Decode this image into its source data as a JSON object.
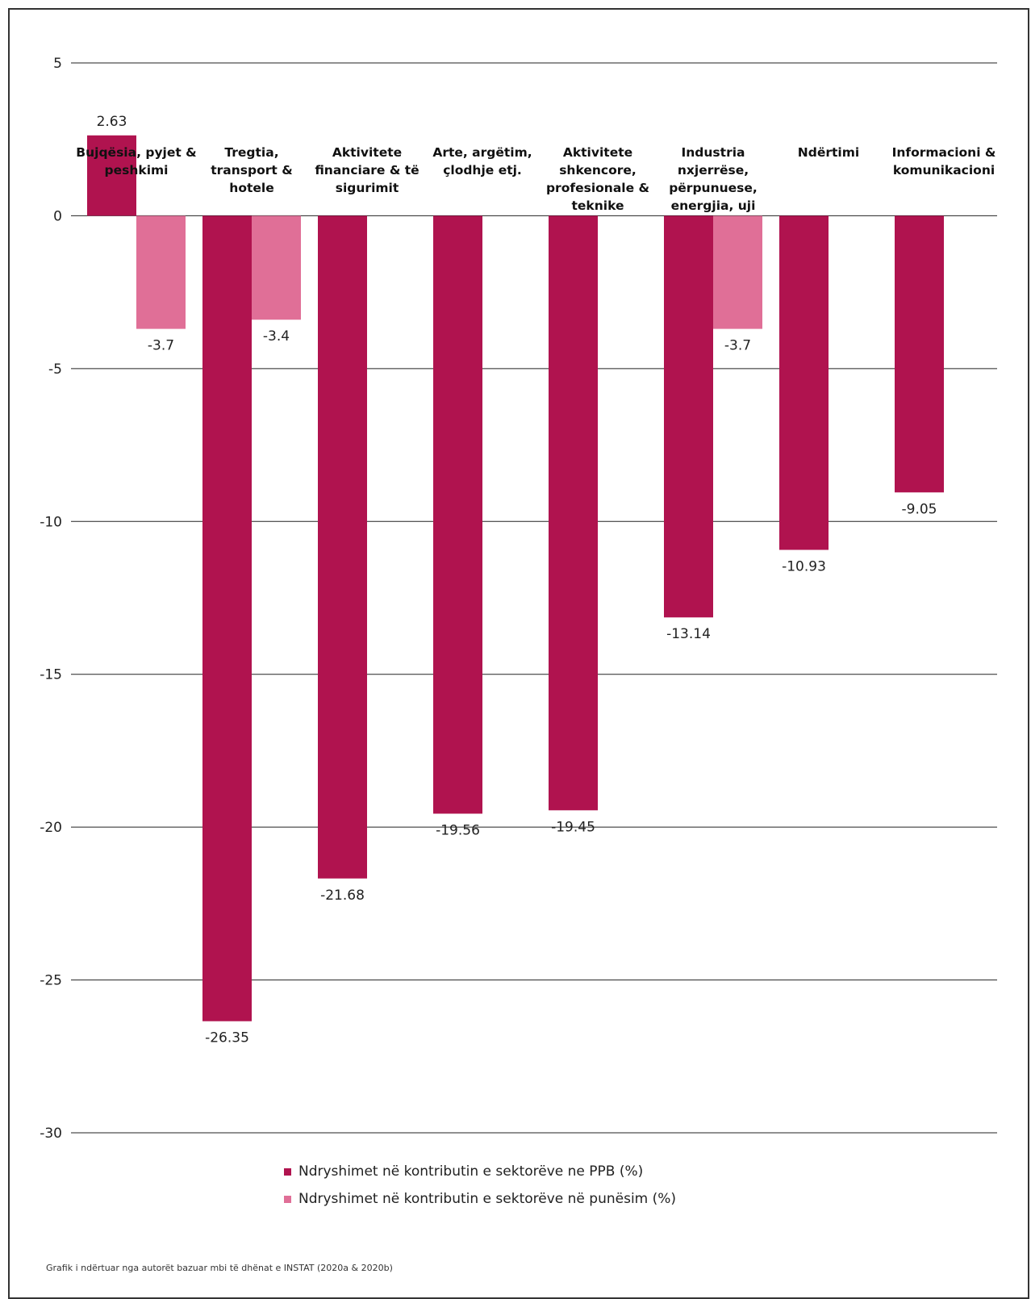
{
  "chart_data": {
    "type": "bar",
    "title": "",
    "xlabel": "",
    "ylabel": "",
    "ylim": [
      -30,
      5
    ],
    "yticks": [
      5,
      0,
      -5,
      -10,
      -15,
      -20,
      -25,
      -30
    ],
    "grid": true,
    "legend_position": "bottom",
    "categories": [
      [
        "Bujqësia, pyjet &",
        "peshkimi"
      ],
      [
        "Tregtia,",
        "transport &",
        "hotele"
      ],
      [
        "Aktivitete",
        "financiare & të",
        "sigurimit"
      ],
      [
        "Arte, argëtim,",
        "çlodhje etj."
      ],
      [
        "Aktivitete",
        "shkencore,",
        "profesionale &",
        "teknike"
      ],
      [
        "Industria",
        "nxjerrëse,",
        "përpunuese,",
        "energjia, uji"
      ],
      [
        "Ndërtimi"
      ],
      [
        "Informacioni &",
        "komunikacioni"
      ]
    ],
    "series": [
      {
        "name": "Ndryshimet në kontributin e sektorëve ne PPB (%)",
        "color": "#b0134f",
        "values": [
          2.63,
          -26.35,
          -21.68,
          -19.56,
          -19.45,
          -13.14,
          -10.93,
          -9.05
        ],
        "labels": [
          "2.63",
          "-26.35",
          "-21.68",
          "-19.56",
          "-19.45",
          "-13.14",
          "-10.93",
          "-9.05"
        ]
      },
      {
        "name": "Ndryshimet në kontributin e sektorëve në punësim (%)",
        "color": "#e06f97",
        "values": [
          -3.7,
          -3.4,
          null,
          null,
          null,
          -3.7,
          null,
          null
        ],
        "labels": [
          "-3.7",
          "-3.4",
          "",
          "",
          "",
          "-3.7",
          "",
          ""
        ]
      }
    ]
  },
  "source_note": "Grafik i ndërtuar nga autorët bazuar mbi të dhënat e INSTAT (2020a & 2020b)"
}
